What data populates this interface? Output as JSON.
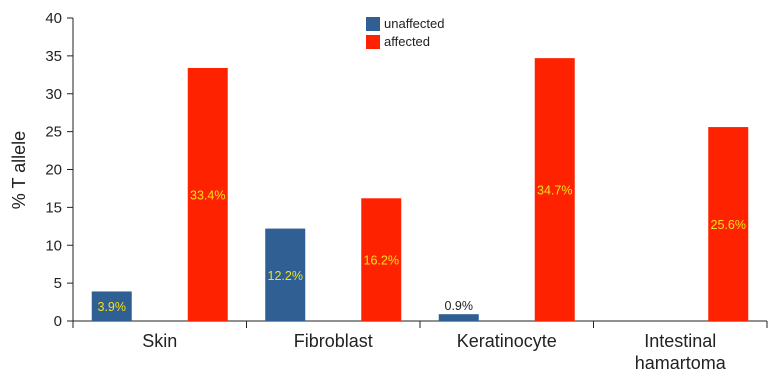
{
  "chart_data": {
    "type": "bar",
    "title": "",
    "xlabel": "",
    "ylabel": "% T allele",
    "ylim": [
      0,
      40
    ],
    "yticks": [
      0,
      5,
      10,
      15,
      20,
      25,
      30,
      35,
      40
    ],
    "categories": [
      "Skin",
      "Fibroblast",
      "Keratinocyte",
      "Intestinal hamartoma"
    ],
    "series": [
      {
        "name": "unaffected",
        "color": "#2F5F93",
        "values": [
          3.9,
          12.2,
          0.9,
          null
        ],
        "labels": [
          "3.9%",
          "12.2%",
          "0.9%",
          ""
        ]
      },
      {
        "name": "affected",
        "color": "#FF2200",
        "values": [
          33.4,
          16.2,
          34.7,
          25.6
        ],
        "labels": [
          "33.4%",
          "16.2%",
          "34.7%",
          "25.6%"
        ]
      }
    ],
    "label_color_inside": "#F2E21A",
    "label_color_outside": "#222222",
    "legend": {
      "position": "top-center"
    },
    "grid": false
  }
}
